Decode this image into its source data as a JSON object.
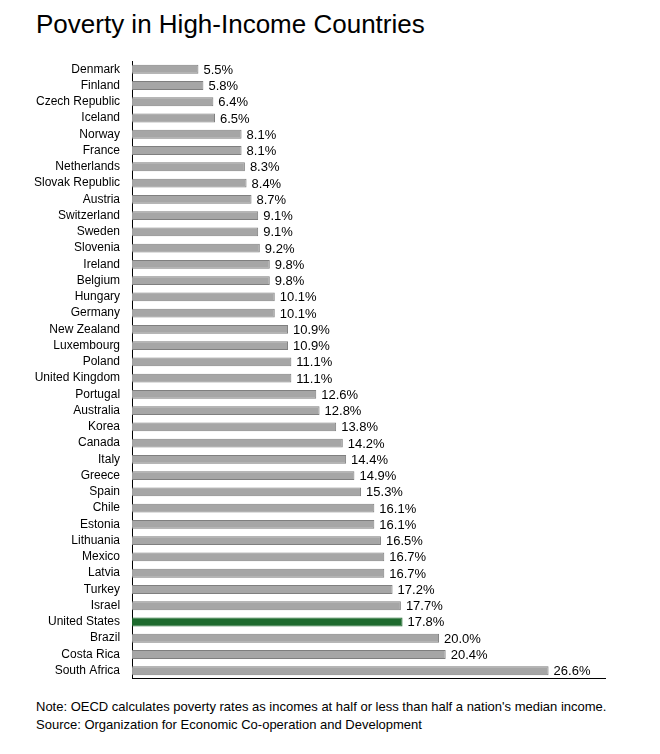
{
  "chart_data": {
    "type": "bar",
    "title": "Poverty in High-Income Countries",
    "orientation": "horizontal",
    "categories": [
      "Denmark",
      "Finland",
      "Czech Republic",
      "Iceland",
      "Norway",
      "France",
      "Netherlands",
      "Slovak Republic",
      "Austria",
      "Switzerland",
      "Sweden",
      "Slovenia",
      "Ireland",
      "Belgium",
      "Hungary",
      "Germany",
      "New Zealand",
      "Luxembourg",
      "Poland",
      "United Kingdom",
      "Portugal",
      "Australia",
      "Korea",
      "Canada",
      "Italy",
      "Greece",
      "Spain",
      "Chile",
      "Estonia",
      "Lithuania",
      "Mexico",
      "Latvia",
      "Turkey",
      "Israel",
      "United States",
      "Brazil",
      "Costa Rica",
      "South Africa"
    ],
    "values": [
      5.5,
      5.8,
      6.4,
      6.5,
      8.1,
      8.1,
      8.3,
      8.4,
      8.7,
      9.1,
      9.1,
      9.2,
      9.8,
      9.8,
      10.1,
      10.1,
      10.9,
      10.9,
      11.1,
      11.1,
      12.6,
      12.8,
      13.8,
      14.2,
      14.4,
      14.9,
      15.3,
      16.1,
      16.1,
      16.5,
      16.7,
      16.7,
      17.2,
      17.7,
      17.8,
      20.0,
      20.4,
      26.6
    ],
    "value_labels": [
      "5.5%",
      "5.8%",
      "6.4%",
      "6.5%",
      "8.1%",
      "8.1%",
      "8.3%",
      "8.4%",
      "8.7%",
      "9.1%",
      "9.1%",
      "9.2%",
      "9.8%",
      "9.8%",
      "10.1%",
      "10.1%",
      "10.9%",
      "10.9%",
      "11.1%",
      "11.1%",
      "12.6%",
      "12.8%",
      "13.8%",
      "14.2%",
      "14.4%",
      "14.9%",
      "15.3%",
      "16.1%",
      "16.1%",
      "16.5%",
      "16.7%",
      "16.7%",
      "17.2%",
      "17.7%",
      "17.8%",
      "20.0%",
      "20.4%",
      "26.6%"
    ],
    "colors": [
      "#a6a6a6",
      "#a6a6a6",
      "#a6a6a6",
      "#a6a6a6",
      "#a6a6a6",
      "#a6a6a6",
      "#a6a6a6",
      "#a6a6a6",
      "#a6a6a6",
      "#a6a6a6",
      "#a6a6a6",
      "#a6a6a6",
      "#a6a6a6",
      "#a6a6a6",
      "#a6a6a6",
      "#a6a6a6",
      "#a6a6a6",
      "#a6a6a6",
      "#a6a6a6",
      "#a6a6a6",
      "#a6a6a6",
      "#a6a6a6",
      "#a6a6a6",
      "#a6a6a6",
      "#a6a6a6",
      "#a6a6a6",
      "#a6a6a6",
      "#a6a6a6",
      "#a6a6a6",
      "#a6a6a6",
      "#a6a6a6",
      "#a6a6a6",
      "#a6a6a6",
      "#a6a6a6",
      "#1e6b2e",
      "#a6a6a6",
      "#a6a6a6",
      "#a6a6a6"
    ],
    "xlim": [
      1.5,
      30
    ],
    "grid": false,
    "data_labels": true,
    "tick_labels": "y",
    "annotations": [
      "Note: OECD calculates poverty rates as incomes at half or less than half a nation's median income.",
      "Source: Organization for Economic Co-operation and Development"
    ]
  }
}
